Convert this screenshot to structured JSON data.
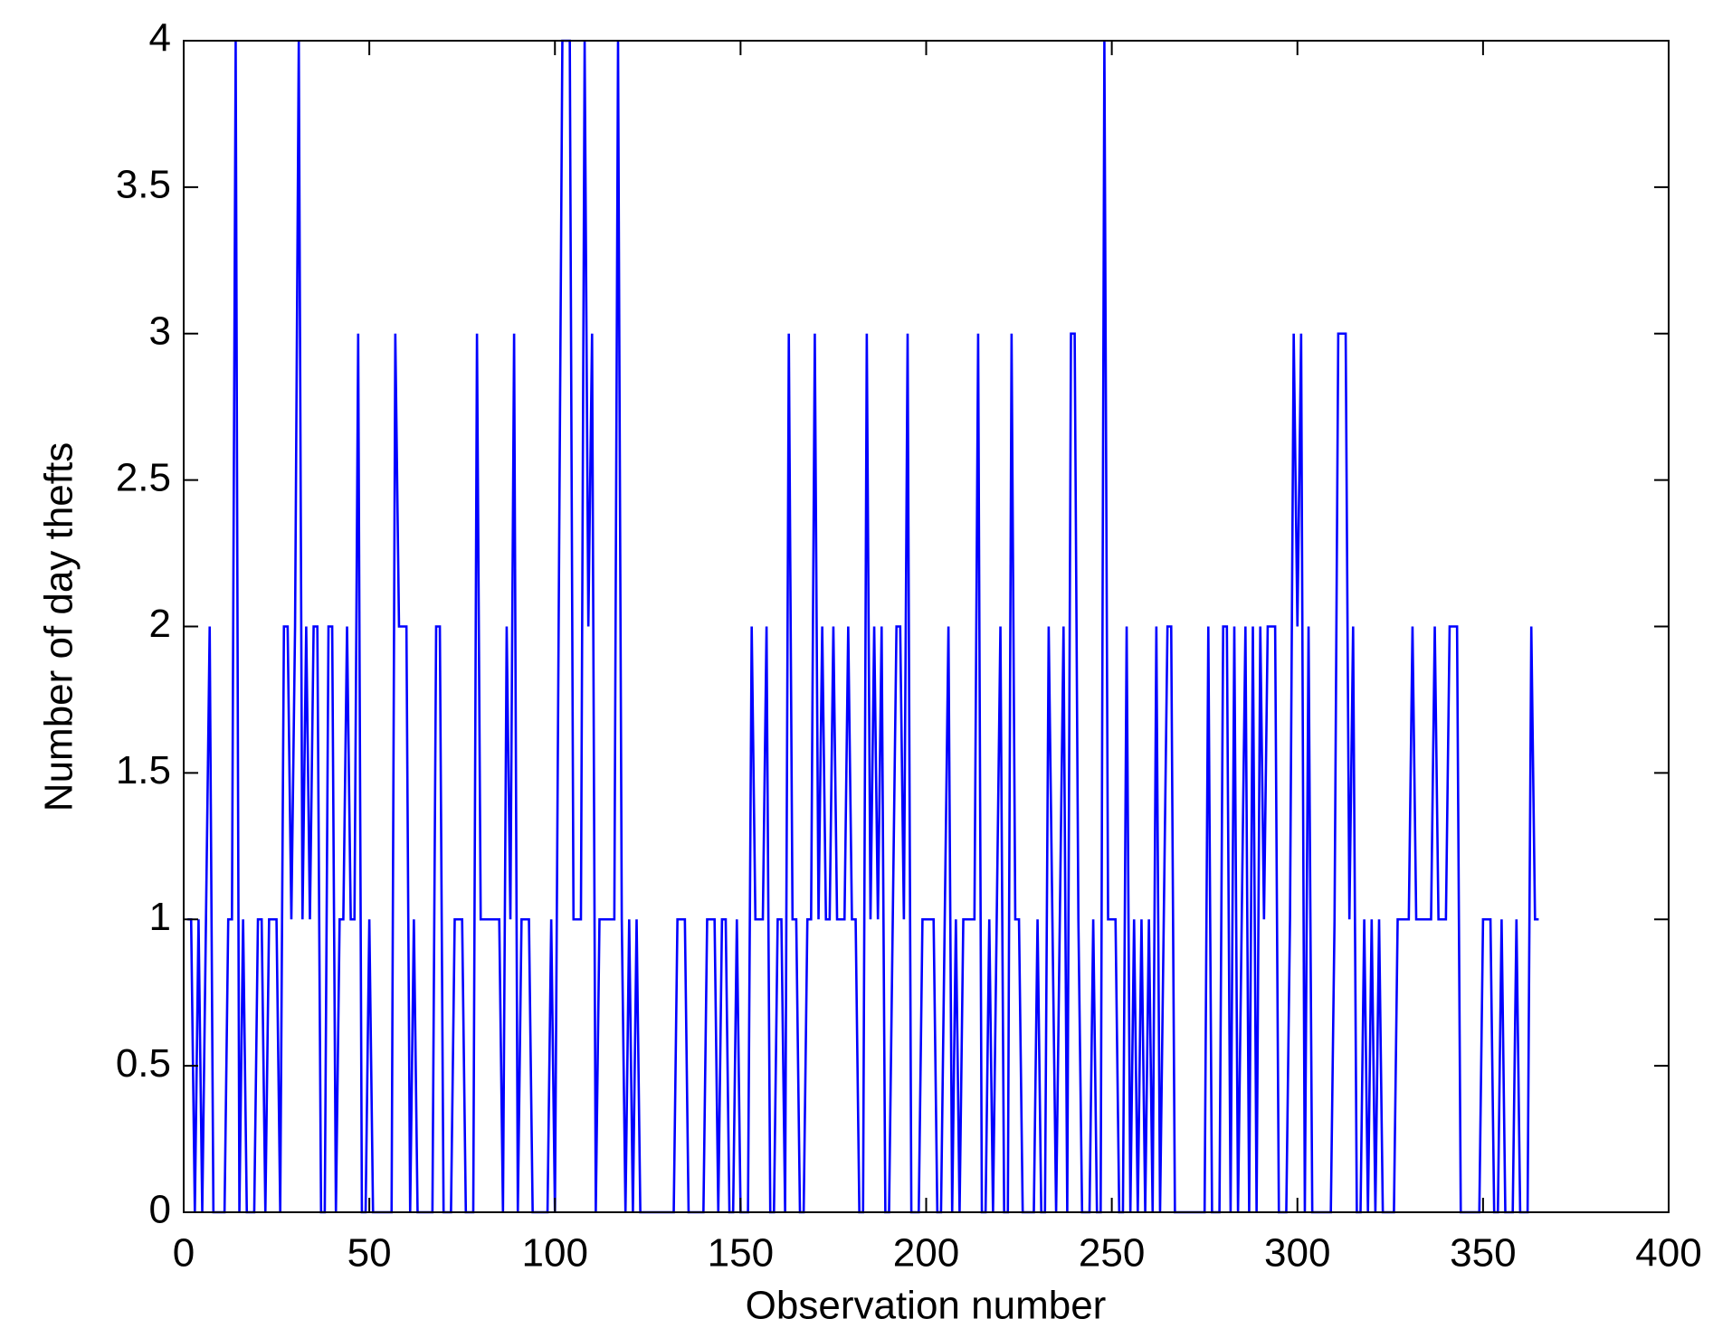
{
  "chart_data": {
    "type": "line",
    "xlabel": "Observation number",
    "ylabel": "Number of day thefts",
    "xlim": [
      0,
      400
    ],
    "xticks": [
      0,
      50,
      100,
      150,
      200,
      250,
      300,
      350,
      400
    ],
    "ylim": [
      0,
      4
    ],
    "yticks": [
      0,
      0.5,
      1,
      1.5,
      2,
      2.5,
      3,
      3.5,
      4
    ],
    "grid": false,
    "x": [
      1,
      2,
      3,
      4,
      5,
      6,
      7,
      8,
      9,
      10,
      11,
      12,
      13,
      14,
      15,
      16,
      17,
      18,
      19,
      20,
      21,
      22,
      23,
      24,
      25,
      26,
      27,
      28,
      29,
      30,
      31,
      32,
      33,
      34,
      35,
      36,
      37,
      38,
      39,
      40,
      41,
      42,
      43,
      44,
      45,
      46,
      47,
      48,
      49,
      50,
      51,
      52,
      53,
      54,
      55,
      56,
      57,
      58,
      59,
      60,
      61,
      62,
      63,
      64,
      65,
      66,
      67,
      68,
      69,
      70,
      71,
      72,
      73,
      74,
      75,
      76,
      77,
      78,
      79,
      80,
      81,
      82,
      83,
      84,
      85,
      86,
      87,
      88,
      89,
      90,
      91,
      92,
      93,
      94,
      95,
      96,
      97,
      98,
      99,
      100,
      101,
      102,
      103,
      104,
      105,
      106,
      107,
      108,
      109,
      110,
      111,
      112,
      113,
      114,
      115,
      116,
      117,
      118,
      119,
      120,
      121,
      122,
      123,
      124,
      125,
      126,
      127,
      128,
      129,
      130,
      131,
      132,
      133,
      134,
      135,
      136,
      137,
      138,
      139,
      140,
      141,
      142,
      143,
      144,
      145,
      146,
      147,
      148,
      149,
      150,
      151,
      152,
      153,
      154,
      155,
      156,
      157,
      158,
      159,
      160,
      161,
      162,
      163,
      164,
      165,
      166,
      167,
      168,
      169,
      170,
      171,
      172,
      173,
      174,
      175,
      176,
      177,
      178,
      179,
      180,
      181,
      182,
      183,
      184,
      185,
      186,
      187,
      188,
      189,
      190,
      191,
      192,
      193,
      194,
      195,
      196,
      197,
      198,
      199,
      200,
      201,
      202,
      203,
      204,
      205,
      206,
      207,
      208,
      209,
      210,
      211,
      212,
      213,
      214,
      215,
      216,
      217,
      218,
      219,
      220,
      221,
      222,
      223,
      224,
      225,
      226,
      227,
      228,
      229,
      230,
      231,
      232,
      233,
      234,
      235,
      236,
      237,
      238,
      239,
      240,
      241,
      242,
      243,
      244,
      245,
      246,
      247,
      248,
      249,
      250,
      251,
      252,
      253,
      254,
      255,
      256,
      257,
      258,
      259,
      260,
      261,
      262,
      263,
      264,
      265,
      266,
      267,
      268,
      269,
      270,
      271,
      272,
      273,
      274,
      275,
      276,
      277,
      278,
      279,
      280,
      281,
      282,
      283,
      284,
      285,
      286,
      287,
      288,
      289,
      290,
      291,
      292,
      293,
      294,
      295,
      296,
      297,
      298,
      299,
      300,
      301,
      302,
      303,
      304,
      305,
      306,
      307,
      308,
      309,
      310,
      311,
      312,
      313,
      314,
      315,
      316,
      317,
      318,
      319,
      320,
      321,
      322,
      323,
      324,
      325,
      326,
      327,
      328,
      329,
      330,
      331,
      332,
      333,
      334,
      335,
      336,
      337,
      338,
      339,
      340,
      341,
      342,
      343,
      344,
      345,
      346,
      347,
      348,
      349,
      350,
      351,
      352,
      353,
      354,
      355,
      356,
      357,
      358,
      359,
      360,
      361,
      362,
      363,
      364,
      365
    ],
    "series": [
      {
        "name": "Day thefts",
        "color": "#0000ff",
        "values": [
          1,
          1,
          0,
          1,
          0,
          1,
          2,
          0,
          0,
          0,
          0,
          1,
          1,
          4,
          0,
          1,
          0,
          0,
          0,
          1,
          1,
          0,
          1,
          1,
          1,
          0,
          2,
          2,
          1,
          2,
          4,
          1,
          2,
          1,
          2,
          2,
          0,
          0,
          2,
          2,
          0,
          1,
          1,
          2,
          1,
          1,
          3,
          0,
          0,
          1,
          0,
          0,
          0,
          0,
          0,
          0,
          3,
          2,
          2,
          2,
          0,
          1,
          0,
          0,
          0,
          0,
          0,
          2,
          2,
          0,
          0,
          0,
          1,
          1,
          1,
          0,
          0,
          0,
          3,
          1,
          1,
          1,
          1,
          1,
          1,
          0,
          2,
          1,
          3,
          0,
          1,
          1,
          1,
          0,
          0,
          0,
          0,
          0,
          1,
          0,
          2,
          4,
          4,
          4,
          1,
          1,
          1,
          4,
          2,
          3,
          0,
          1,
          1,
          1,
          1,
          1,
          4,
          1,
          0,
          1,
          0,
          1,
          0,
          0,
          0,
          0,
          0,
          0,
          0,
          0,
          0,
          0,
          1,
          1,
          1,
          0,
          0,
          0,
          0,
          0,
          1,
          1,
          1,
          0,
          1,
          1,
          0,
          0,
          1,
          0,
          0,
          0,
          2,
          1,
          1,
          1,
          2,
          0,
          0,
          1,
          1,
          0,
          3,
          1,
          1,
          0,
          0,
          1,
          1,
          3,
          1,
          2,
          1,
          1,
          2,
          1,
          1,
          1,
          2,
          1,
          1,
          0,
          0,
          3,
          1,
          2,
          1,
          2,
          0,
          0,
          1,
          2,
          2,
          1,
          3,
          0,
          0,
          0,
          1,
          1,
          1,
          1,
          0,
          0,
          1,
          2,
          0,
          1,
          0,
          1,
          1,
          1,
          1,
          3,
          0,
          0,
          1,
          0,
          1,
          2,
          0,
          0,
          3,
          1,
          1,
          0,
          0,
          0,
          0,
          1,
          0,
          0,
          2,
          1,
          0,
          1,
          2,
          0,
          3,
          3,
          1,
          0,
          0,
          0,
          1,
          0,
          0,
          4,
          1,
          1,
          1,
          0,
          0,
          2,
          0,
          1,
          0,
          1,
          0,
          1,
          0,
          2,
          0,
          1,
          2,
          2,
          0,
          0,
          0,
          0,
          0,
          0,
          0,
          0,
          0,
          2,
          0,
          0,
          0,
          2,
          2,
          0,
          2,
          0,
          1,
          2,
          0,
          2,
          0,
          2,
          1,
          2,
          2,
          2,
          0,
          0,
          0,
          1,
          3,
          2,
          3,
          0,
          2,
          0,
          0,
          0,
          0,
          0,
          0,
          1,
          3,
          3,
          3,
          1,
          2,
          0,
          0,
          1,
          0,
          1,
          0,
          1,
          0,
          0,
          0,
          0,
          1,
          1,
          1,
          1,
          2,
          1,
          1,
          1,
          1,
          1,
          2,
          1,
          1,
          1,
          2,
          2,
          2,
          0,
          0,
          0,
          0,
          0,
          0,
          1,
          1,
          1,
          0,
          0,
          1,
          0,
          0,
          0,
          1,
          0,
          0,
          0,
          2,
          1,
          1
        ]
      }
    ]
  }
}
